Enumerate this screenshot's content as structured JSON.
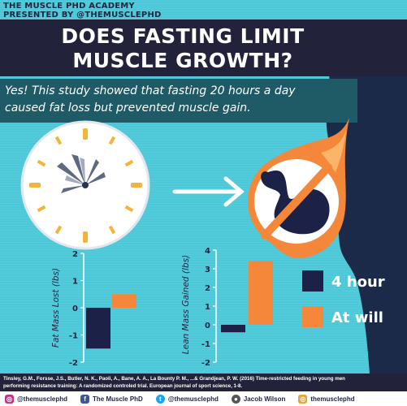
{
  "brand": {
    "line1": "THE MUSCLE PHD ACADEMY",
    "line2": "PRESENTED BY @THEMUSCLEPHD"
  },
  "title": {
    "line1": "DOES FASTING LIMIT",
    "line2": "MUSCLE GROWTH?"
  },
  "subtitle": {
    "line1": "Yes! This study showed that fasting 20 hours a day",
    "line2": "caused fat loss but prevented muscle gain."
  },
  "colors": {
    "background": "#4cc8d8",
    "band_dark": "#22223a",
    "band_teal": "#1f5b66",
    "series_4hour": "#1c2148",
    "series_atwill": "#f4873a",
    "silhouette": "#1c2a4a"
  },
  "icons": [
    "clock-icon",
    "arrow-icon",
    "flexed-arm-icon",
    "prohibition-icon",
    "instagram-icon",
    "facebook-icon",
    "twitter-icon",
    "user-icon",
    "bodybuilder-silhouette-icon"
  ],
  "chart_data": [
    {
      "type": "bar",
      "ylabel": "Fat Mass Lost (lbs)",
      "ylim": [
        -2,
        2
      ],
      "yticks": [
        -2,
        -1,
        0,
        1,
        2
      ],
      "grid": false,
      "series": [
        {
          "name": "4 hour",
          "color": "#1c2148",
          "values": [
            -1.5
          ]
        },
        {
          "name": "At will",
          "color": "#f4873a",
          "values": [
            0.5
          ]
        }
      ]
    },
    {
      "type": "bar",
      "ylabel": "Lean Mass Gained (lbs)",
      "ylim": [
        -2,
        4
      ],
      "yticks": [
        -2,
        -1,
        0,
        1,
        2,
        3,
        4
      ],
      "grid": false,
      "series": [
        {
          "name": "4 hour",
          "color": "#1c2148",
          "values": [
            -0.4
          ]
        },
        {
          "name": "At will",
          "color": "#f4873a",
          "values": [
            3.4
          ]
        }
      ]
    }
  ],
  "legend": {
    "placement": "right",
    "items": [
      {
        "label": "4 hour",
        "color": "#1c2148"
      },
      {
        "label": "At will",
        "color": "#f4873a"
      }
    ]
  },
  "citation": {
    "line1": "Tinsley, G.M., Forsse, J.S., Butler, N. K., Paoli, A., Bane, A. A., La Bounty P. M., ...& Grandjean, P. W. (2016) Time-restricted feeding in young men",
    "line2": "performing resistance training: A randomized controled trial. European journal of sport science, 1-8."
  },
  "social": [
    {
      "icon": "instagram-icon",
      "label": "@themusclephd",
      "color": "#c13584"
    },
    {
      "icon": "facebook-icon",
      "label": "The Muscle PhD",
      "color": "#3b5998"
    },
    {
      "icon": "twitter-icon",
      "label": "@themusclephd",
      "color": "#1da1f2"
    },
    {
      "icon": "user-icon",
      "label": "Jacob Wilson",
      "color": "#555555"
    },
    {
      "icon": "instagram-icon",
      "label": "themusclephd",
      "color": "#e8a33a"
    }
  ]
}
